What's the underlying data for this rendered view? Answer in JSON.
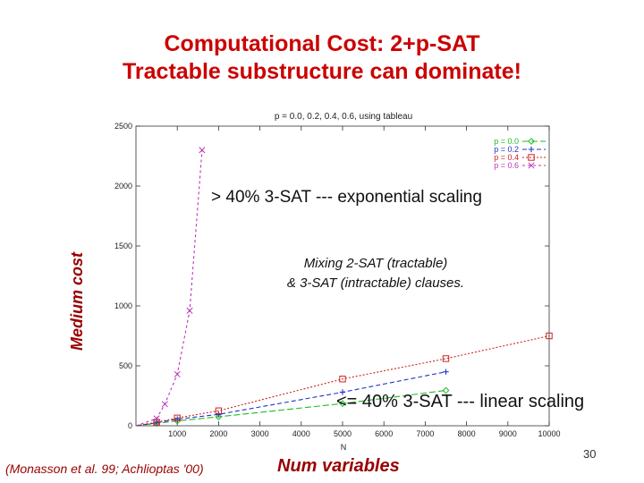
{
  "slide": {
    "title_line1": "Computational Cost: 2+p-SAT",
    "title_line2": "Tractable substructure can dominate!",
    "side_label": "Medium cost",
    "bottom_x_label": "Num variables",
    "citation": "(Monasson et al. 99; Achlioptas '00)",
    "page_number": "30",
    "annotation_exponential": "> 40% 3-SAT --- exponential scaling",
    "annotation_mixing_line1": "Mixing 2-SAT (tractable)",
    "annotation_mixing_line2": "& 3-SAT (intractable) clauses.",
    "annotation_linear": "<= 40% 3-SAT --- linear scaling"
  },
  "chart_data": {
    "type": "line",
    "title": "p = 0.0, 0.2, 0.4, 0.6, using tableau",
    "xlabel": "N",
    "ylabel": "Medium cost",
    "xlim": [
      0,
      10000
    ],
    "ylim": [
      0,
      2500
    ],
    "xticks": [
      "1000",
      "2000",
      "3000",
      "4000",
      "5000",
      "6000",
      "7000",
      "8000",
      "9000",
      "10000"
    ],
    "yticks": [
      "0",
      "500",
      "1000",
      "1500",
      "2000",
      "2500"
    ],
    "grid": false,
    "legend_position": "top-right",
    "series": [
      {
        "name": "p = 0.0",
        "color": "#22bb22",
        "marker": "diamond",
        "dash": "7,3",
        "x": [
          0,
          500,
          1000,
          2000,
          5000,
          7500
        ],
        "y": [
          0,
          20,
          40,
          75,
          185,
          295
        ]
      },
      {
        "name": "p = 0.2",
        "color": "#2233cc",
        "marker": "plus",
        "dash": "5,3",
        "x": [
          0,
          500,
          1000,
          2000,
          5000,
          7500
        ],
        "y": [
          0,
          25,
          55,
          95,
          280,
          450
        ]
      },
      {
        "name": "p = 0.4",
        "color": "#cc2222",
        "marker": "square",
        "dash": "2,2",
        "x": [
          0,
          500,
          1000,
          2000,
          5000,
          7500,
          10000
        ],
        "y": [
          0,
          30,
          65,
          125,
          390,
          560,
          750
        ]
      },
      {
        "name": "p = 0.6",
        "color": "#bb33bb",
        "marker": "cross",
        "dash": "3,3",
        "x": [
          0,
          500,
          700,
          1000,
          1300,
          1600
        ],
        "y": [
          0,
          60,
          180,
          430,
          960,
          2300
        ]
      }
    ]
  }
}
